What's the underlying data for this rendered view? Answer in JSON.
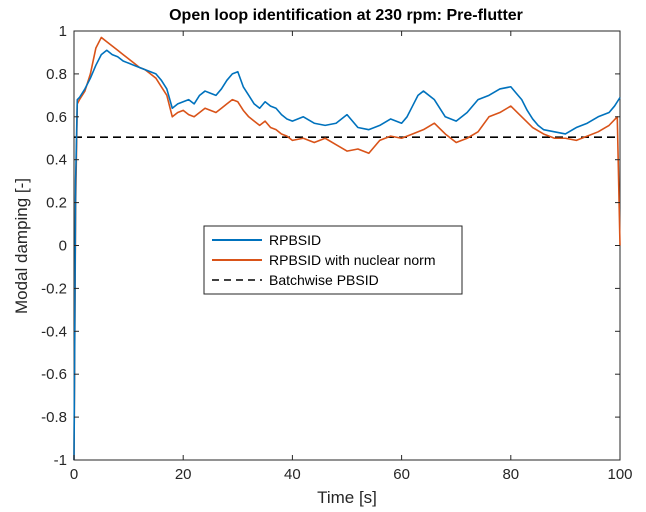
{
  "chart_data": {
    "type": "line",
    "title": "Open loop identification at 230 rpm: Pre-flutter",
    "xlabel": "Time [s]",
    "ylabel": "Modal damping [-]",
    "xlim": [
      0,
      100
    ],
    "ylim": [
      -1,
      1
    ],
    "xticks": [
      0,
      20,
      40,
      60,
      80,
      100
    ],
    "yticks": [
      -1,
      -0.8,
      -0.6,
      -0.4,
      -0.2,
      0,
      0.2,
      0.4,
      0.6,
      0.8,
      1
    ],
    "ytick_labels": [
      "-1",
      "-0.8",
      "-0.6",
      "-0.4",
      "-0.2",
      "0",
      "0.2",
      "0.4",
      "0.6",
      "0.8",
      "1"
    ],
    "legend_position": "center-left",
    "grid": false,
    "series": [
      {
        "name": "RPBSID",
        "color": "#0072BD",
        "style": "solid",
        "x": [
          0,
          0.3,
          0.6,
          1,
          2,
          3,
          4,
          5,
          6,
          7,
          8,
          9,
          10,
          11,
          12,
          13,
          14,
          15,
          16,
          17,
          18,
          19,
          20,
          21,
          22,
          23,
          24,
          25,
          26,
          27,
          28,
          29,
          30,
          31,
          32,
          33,
          34,
          35,
          36,
          37,
          38,
          39,
          40,
          42,
          44,
          46,
          48,
          50,
          52,
          54,
          56,
          58,
          60,
          61,
          62,
          63,
          64,
          66,
          68,
          70,
          72,
          74,
          76,
          78,
          80,
          81,
          82,
          83,
          84,
          85,
          86,
          88,
          90,
          92,
          94,
          96,
          98,
          99,
          100
        ],
        "y": [
          -1,
          0.3,
          0.68,
          0.69,
          0.73,
          0.78,
          0.84,
          0.89,
          0.91,
          0.89,
          0.88,
          0.86,
          0.85,
          0.84,
          0.83,
          0.82,
          0.81,
          0.8,
          0.77,
          0.73,
          0.64,
          0.66,
          0.67,
          0.68,
          0.66,
          0.7,
          0.72,
          0.71,
          0.7,
          0.73,
          0.77,
          0.8,
          0.81,
          0.74,
          0.7,
          0.66,
          0.64,
          0.67,
          0.65,
          0.64,
          0.61,
          0.59,
          0.58,
          0.6,
          0.57,
          0.56,
          0.57,
          0.61,
          0.55,
          0.54,
          0.56,
          0.59,
          0.57,
          0.6,
          0.65,
          0.7,
          0.72,
          0.68,
          0.6,
          0.58,
          0.62,
          0.68,
          0.7,
          0.73,
          0.74,
          0.71,
          0.68,
          0.63,
          0.59,
          0.56,
          0.54,
          0.53,
          0.52,
          0.55,
          0.57,
          0.6,
          0.62,
          0.65,
          0.69
        ]
      },
      {
        "name": "RPBSID with nuclear norm",
        "color": "#D95319",
        "style": "solid",
        "x": [
          0,
          0.3,
          0.6,
          1,
          2,
          3,
          4,
          5,
          6,
          7,
          8,
          9,
          10,
          11,
          12,
          13,
          14,
          15,
          16,
          17,
          18,
          19,
          20,
          21,
          22,
          23,
          24,
          25,
          26,
          27,
          28,
          29,
          30,
          31,
          32,
          33,
          34,
          35,
          36,
          37,
          38,
          39,
          40,
          42,
          44,
          46,
          48,
          50,
          52,
          54,
          56,
          58,
          60,
          62,
          64,
          66,
          68,
          70,
          72,
          74,
          76,
          78,
          80,
          82,
          84,
          86,
          88,
          90,
          92,
          94,
          96,
          98,
          99.5,
          100
        ],
        "y": [
          -1,
          0.2,
          0.66,
          0.68,
          0.72,
          0.8,
          0.92,
          0.97,
          0.95,
          0.93,
          0.91,
          0.89,
          0.87,
          0.85,
          0.83,
          0.82,
          0.8,
          0.78,
          0.74,
          0.7,
          0.6,
          0.62,
          0.63,
          0.61,
          0.6,
          0.62,
          0.64,
          0.63,
          0.62,
          0.64,
          0.66,
          0.68,
          0.67,
          0.63,
          0.6,
          0.58,
          0.56,
          0.58,
          0.55,
          0.54,
          0.52,
          0.51,
          0.49,
          0.5,
          0.48,
          0.5,
          0.47,
          0.44,
          0.45,
          0.43,
          0.49,
          0.51,
          0.5,
          0.52,
          0.54,
          0.57,
          0.52,
          0.48,
          0.5,
          0.53,
          0.6,
          0.62,
          0.65,
          0.6,
          0.55,
          0.52,
          0.5,
          0.5,
          0.49,
          0.51,
          0.53,
          0.56,
          0.6,
          0
        ]
      },
      {
        "name": "Batchwise PBSID",
        "color": "#000000",
        "style": "dashed",
        "x": [
          0,
          100
        ],
        "y": [
          0.505,
          0.505
        ]
      }
    ]
  }
}
